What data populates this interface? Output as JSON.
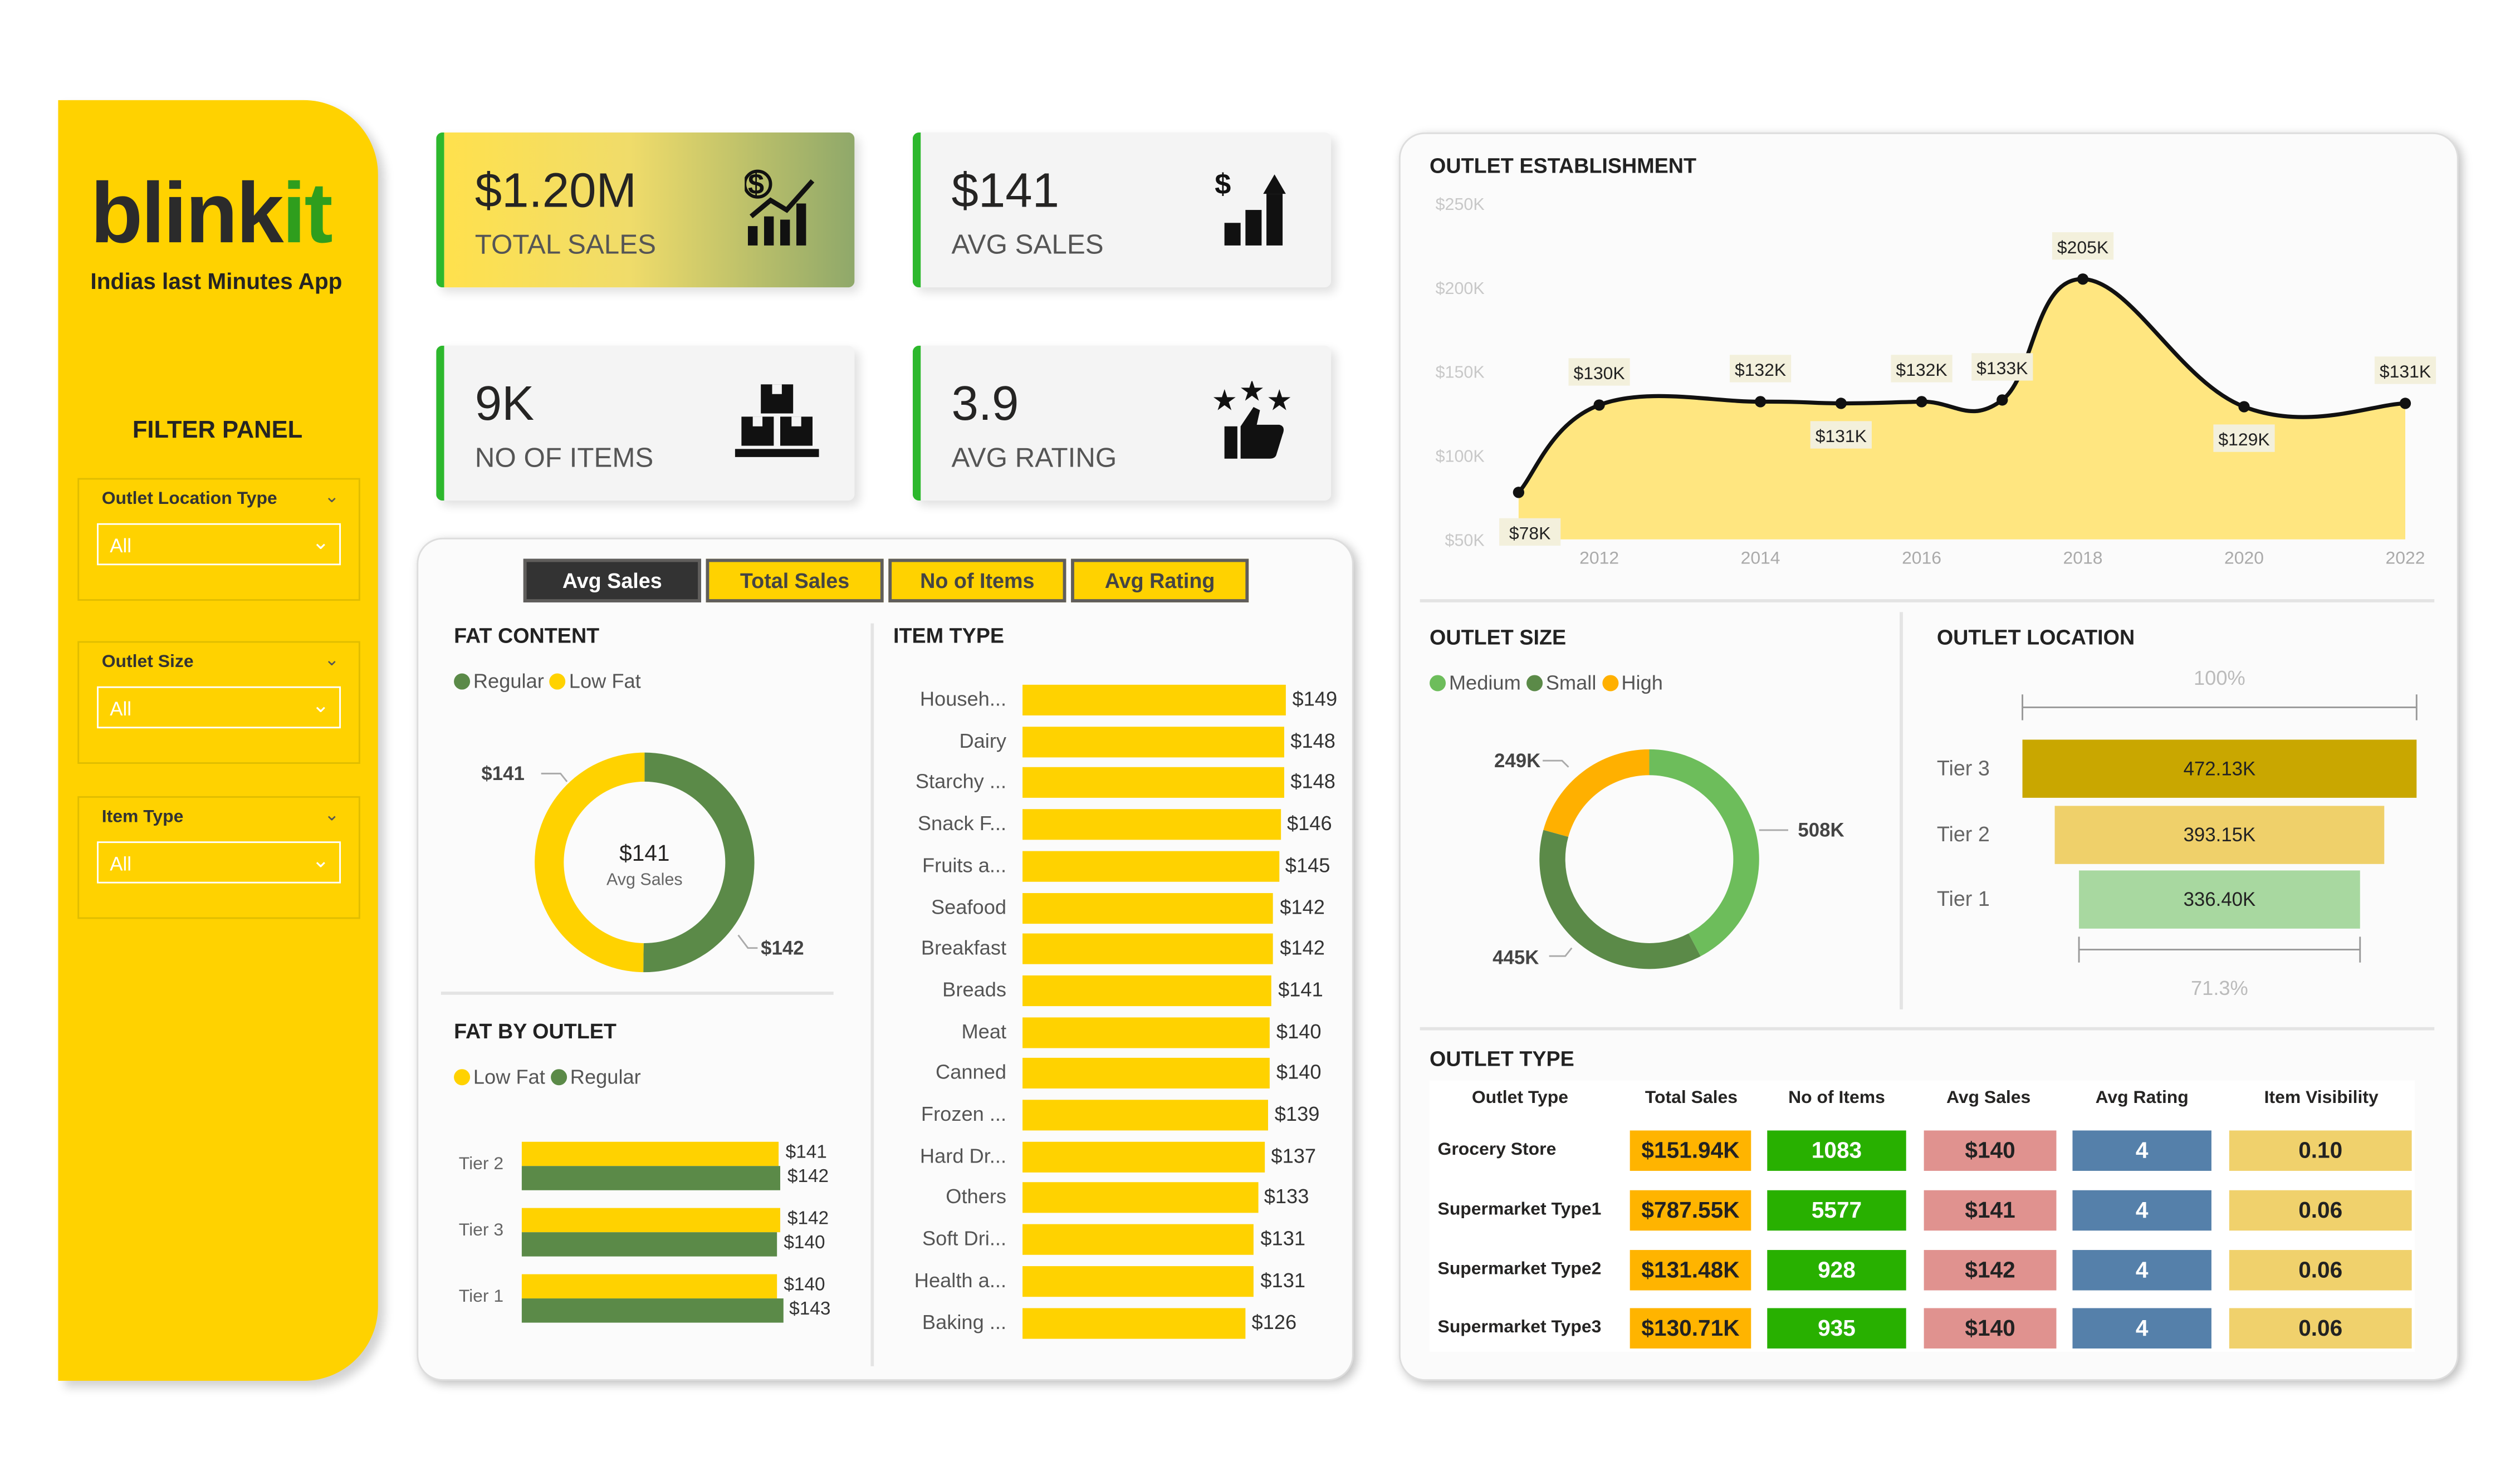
{
  "brand": {
    "logo_main": "blink",
    "logo_accent": "it",
    "tagline": "Indias last Minutes App"
  },
  "filter_panel": {
    "title": "FILTER PANEL",
    "filters": [
      {
        "label": "Outlet Location Type",
        "value": "All"
      },
      {
        "label": "Outlet Size",
        "value": "All"
      },
      {
        "label": "Item Type",
        "value": "All"
      }
    ]
  },
  "kpis": [
    {
      "value": "$1.20M",
      "label": "TOTAL SALES",
      "icon": "sales-chart-icon"
    },
    {
      "value": "$141",
      "label": "AVG SALES",
      "icon": "growth-chart-icon"
    },
    {
      "value": "9K",
      "label": "NO OF ITEMS",
      "icon": "boxes-icon"
    },
    {
      "value": "3.9",
      "label": "AVG RATING",
      "icon": "rating-thumb-icon"
    }
  ],
  "tabs": [
    {
      "label": "Avg Sales",
      "active": true
    },
    {
      "label": "Total Sales"
    },
    {
      "label": "No of Items"
    },
    {
      "label": "Avg Rating"
    }
  ],
  "colors": {
    "yellow": "#FFD200",
    "green": "#5B8A48",
    "dark": "#333333",
    "accent_green": "#2db82d"
  },
  "chart_data": [
    {
      "type": "pie",
      "title": "FAT CONTENT",
      "legend": [
        "Regular",
        "Low Fat"
      ],
      "values": [
        142,
        141
      ],
      "labels": [
        "$142",
        "$141"
      ],
      "colors": [
        "#5B8A48",
        "#FFD200"
      ],
      "center_value": "$141",
      "center_label": "Avg Sales"
    },
    {
      "type": "bar",
      "title": "FAT BY OUTLET",
      "legend": [
        "Low Fat",
        "Regular"
      ],
      "categories": [
        "Tier 2",
        "Tier 3",
        "Tier 1"
      ],
      "series": [
        {
          "name": "Low Fat",
          "values": [
            141,
            142,
            140
          ],
          "labels": [
            "$141",
            "$142",
            "$140"
          ]
        },
        {
          "name": "Regular",
          "values": [
            142,
            140,
            143
          ],
          "labels": [
            "$142",
            "$140",
            "$143"
          ]
        }
      ]
    },
    {
      "type": "bar",
      "title": "ITEM TYPE",
      "categories": [
        "Househ...",
        "Dairy",
        "Starchy ...",
        "Snack F...",
        "Fruits a...",
        "Seafood",
        "Breakfast",
        "Breads",
        "Meat",
        "Canned",
        "Frozen ...",
        "Hard Dr...",
        "Others",
        "Soft Dri...",
        "Health a...",
        "Baking ..."
      ],
      "values": [
        149,
        148,
        148,
        146,
        145,
        142,
        142,
        141,
        140,
        140,
        139,
        137,
        133,
        131,
        131,
        126
      ],
      "labels": [
        "$149",
        "$148",
        "$148",
        "$146",
        "$145",
        "$142",
        "$142",
        "$141",
        "$140",
        "$140",
        "$139",
        "$137",
        "$133",
        "$131",
        "$131",
        "$126"
      ]
    },
    {
      "type": "area",
      "title": "OUTLET ESTABLISHMENT",
      "x": [
        2011,
        2012,
        2014,
        2015,
        2016,
        2017,
        2018,
        2020,
        2022
      ],
      "values": [
        78,
        130,
        132,
        131,
        132,
        133,
        205,
        129,
        131
      ],
      "labels": [
        "$78K",
        "$130K",
        "$132K",
        "$131K",
        "$132K",
        "$133K",
        "$205K",
        "$129K",
        "$131K"
      ],
      "yticks": [
        "$50K",
        "$100K",
        "$150K",
        "$200K",
        "$250K"
      ],
      "ytick_values": [
        50,
        100,
        150,
        200,
        250
      ],
      "xticks": [
        "2012",
        "2014",
        "2016",
        "2018",
        "2020",
        "2022"
      ],
      "ylim": [
        50,
        250
      ]
    },
    {
      "type": "pie",
      "title": "OUTLET SIZE",
      "legend": [
        "Medium",
        "Small",
        "High"
      ],
      "values": [
        508,
        445,
        249
      ],
      "labels": [
        "508K",
        "445K",
        "249K"
      ],
      "colors": [
        "#6DBD5B",
        "#5B8A48",
        "#FFB000"
      ]
    },
    {
      "type": "bar",
      "title": "OUTLET LOCATION",
      "categories": [
        "Tier 3",
        "Tier 2",
        "Tier 1"
      ],
      "values": [
        472.13,
        393.15,
        336.4
      ],
      "labels": [
        "472.13K",
        "393.15K",
        "336.40K"
      ],
      "top_pct": "100%",
      "bottom_pct": "71.3%",
      "colors": [
        "#C9A700",
        "#EFD06A",
        "#A8D8A0"
      ]
    },
    {
      "type": "table",
      "title": "OUTLET TYPE",
      "columns": [
        "Outlet Type",
        "Total Sales",
        "No of Items",
        "Avg Sales",
        "Avg Rating",
        "Item Visibility"
      ],
      "rows": [
        [
          "Grocery Store",
          "$151.94K",
          "1083",
          "$140",
          "4",
          "0.10"
        ],
        [
          "Supermarket Type1",
          "$787.55K",
          "5577",
          "$141",
          "4",
          "0.06"
        ],
        [
          "Supermarket Type2",
          "$131.48K",
          "928",
          "$142",
          "4",
          "0.06"
        ],
        [
          "Supermarket Type3",
          "$130.71K",
          "935",
          "$140",
          "4",
          "0.06"
        ]
      ],
      "colors": [
        "#FFB400",
        "#28B000",
        "#E0928F",
        "#5580AA",
        "#F0D16C"
      ]
    }
  ]
}
